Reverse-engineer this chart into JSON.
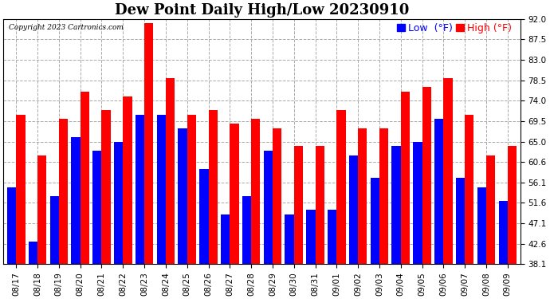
{
  "title": "Dew Point Daily High/Low 20230910",
  "copyright": "Copyright 2023 Cartronics.com",
  "dates": [
    "08/17",
    "08/18",
    "08/19",
    "08/20",
    "08/21",
    "08/22",
    "08/23",
    "08/24",
    "08/25",
    "08/26",
    "08/27",
    "08/28",
    "08/29",
    "08/30",
    "08/31",
    "09/01",
    "09/02",
    "09/03",
    "09/04",
    "09/05",
    "09/06",
    "09/07",
    "09/08",
    "09/09"
  ],
  "high_values": [
    71,
    62,
    70,
    76,
    72,
    75,
    91,
    79,
    71,
    72,
    69,
    70,
    68,
    64,
    64,
    72,
    68,
    68,
    76,
    77,
    79,
    71,
    62,
    64
  ],
  "low_values": [
    55,
    43,
    53,
    66,
    63,
    65,
    71,
    71,
    68,
    59,
    49,
    53,
    63,
    49,
    50,
    50,
    62,
    57,
    64,
    65,
    70,
    57,
    55,
    52
  ],
  "bar_width": 0.42,
  "high_color": "#FF0000",
  "low_color": "#0000FF",
  "background_color": "#FFFFFF",
  "grid_color": "#AAAAAA",
  "yticks": [
    38.1,
    42.6,
    47.1,
    51.6,
    56.1,
    60.6,
    65.0,
    69.5,
    74.0,
    78.5,
    83.0,
    87.5,
    92.0
  ],
  "ymin": 38.1,
  "ymax": 92.0,
  "title_fontsize": 13,
  "tick_fontsize": 7.5,
  "legend_fontsize": 9,
  "figwidth": 6.9,
  "figheight": 3.75,
  "dpi": 100
}
